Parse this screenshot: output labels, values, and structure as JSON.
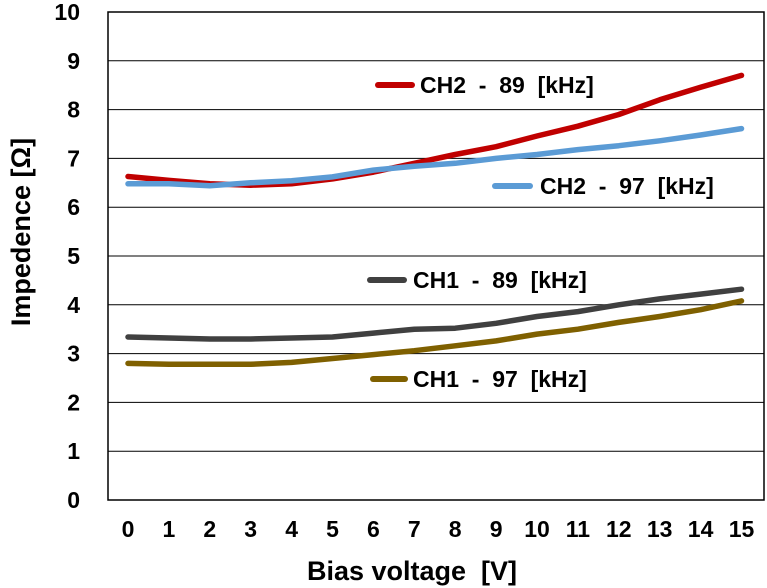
{
  "chart_data": {
    "type": "line",
    "xlabel": "Bias voltage  [V]",
    "ylabel": "Impedence [Ω]",
    "xlim": [
      0,
      15
    ],
    "ylim": [
      0,
      10
    ],
    "x_ticks": [
      "0",
      "1",
      "2",
      "3",
      "4",
      "5",
      "6",
      "7",
      "8",
      "9",
      "10",
      "11",
      "12",
      "13",
      "14",
      "15"
    ],
    "y_ticks": [
      "0",
      "1",
      "2",
      "3",
      "4",
      "5",
      "6",
      "7",
      "8",
      "9",
      "10"
    ],
    "grid": "horizontal",
    "x": [
      0,
      1,
      2,
      3,
      4,
      5,
      6,
      7,
      8,
      9,
      10,
      11,
      12,
      13,
      14,
      15
    ],
    "series": [
      {
        "name": "CH2  -  89  [kHz]",
        "color": "#c00000",
        "values": [
          6.63,
          6.55,
          6.48,
          6.45,
          6.48,
          6.58,
          6.72,
          6.9,
          7.08,
          7.24,
          7.46,
          7.66,
          7.9,
          8.2,
          8.46,
          8.7
        ]
      },
      {
        "name": "CH2  -  97  [kHz]",
        "color": "#5b9bd5",
        "values": [
          6.48,
          6.48,
          6.44,
          6.5,
          6.54,
          6.62,
          6.76,
          6.84,
          6.9,
          7.0,
          7.08,
          7.18,
          7.26,
          7.36,
          7.48,
          7.61
        ]
      },
      {
        "name": "CH1  -  89  [kHz]",
        "color": "#404040",
        "values": [
          3.34,
          3.32,
          3.3,
          3.3,
          3.32,
          3.34,
          3.42,
          3.5,
          3.52,
          3.62,
          3.76,
          3.86,
          4.0,
          4.12,
          4.22,
          4.32
        ]
      },
      {
        "name": "CH1  -  97  [kHz]",
        "color": "#7f6000",
        "values": [
          2.8,
          2.78,
          2.78,
          2.78,
          2.82,
          2.9,
          2.98,
          3.06,
          3.16,
          3.26,
          3.4,
          3.5,
          3.64,
          3.76,
          3.9,
          4.08
        ]
      }
    ]
  }
}
